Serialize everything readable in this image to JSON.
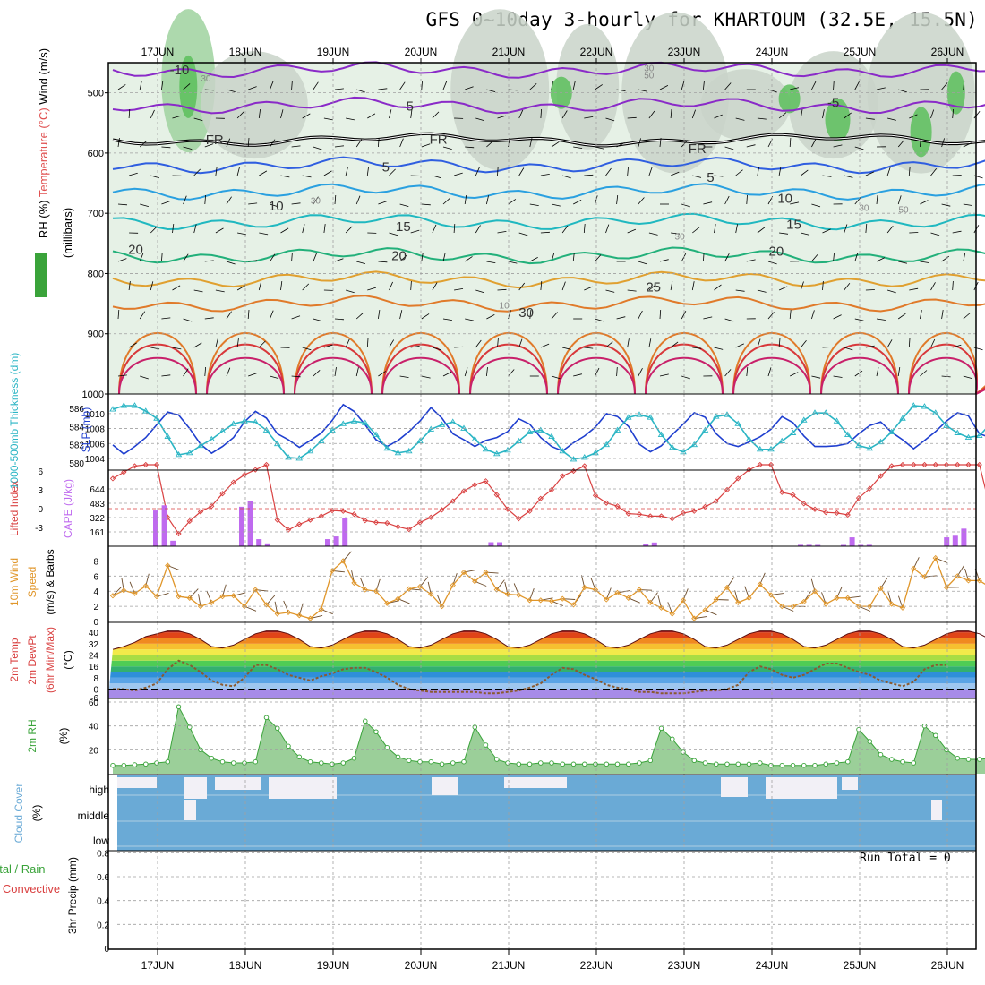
{
  "title": "GFS 0~10day 3-hourly for KHARTOUM (32.5E, 15.5N)",
  "run_total": "Run Total = 0",
  "date_labels": [
    "17JUN",
    "18JUN",
    "19JUN",
    "20JUN",
    "21JUN",
    "22JUN",
    "23JUN",
    "24JUN",
    "25JUN",
    "26JUN"
  ],
  "colors": {
    "frame": "#000000",
    "grid": "#a0a0a0",
    "sounding_bg": "#e6f1e6",
    "cloud": "#6aaad6",
    "cloud_gap": "#f2f0f6",
    "rh": "#3aa33a",
    "slp": "#1f3fcf",
    "thickness": "#2ab5c4",
    "li": "#d94040",
    "cape": "#bf6aef",
    "wind": "#e0962a",
    "freezing": "#000000"
  },
  "chart_data": [
    {
      "type": "contour",
      "panel": "sounding",
      "ylabel_parts": [
        "RH (%)",
        "Temperature (°C)",
        "Wind (m/s)"
      ],
      "ylabel2": "(millibars)",
      "yticks": [
        500,
        600,
        700,
        800,
        900,
        1000
      ],
      "ylim": [
        1000,
        450
      ],
      "temp_contour_labels": [
        {
          "label": "-10",
          "day": 0.25,
          "p": 462
        },
        {
          "label": "-5",
          "day": 2.85,
          "p": 522
        },
        {
          "label": "-5",
          "day": 7.7,
          "p": 516
        },
        {
          "label": "FR",
          "day": 0.65,
          "p": 578
        },
        {
          "label": "FR",
          "day": 3.2,
          "p": 577
        },
        {
          "label": "FR",
          "day": 6.15,
          "p": 593
        },
        {
          "label": "5",
          "day": 2.6,
          "p": 623
        },
        {
          "label": "5",
          "day": 6.3,
          "p": 640
        },
        {
          "label": "10",
          "day": 1.35,
          "p": 688
        },
        {
          "label": "10",
          "day": 7.15,
          "p": 675
        },
        {
          "label": "15",
          "day": 2.8,
          "p": 722
        },
        {
          "label": "15",
          "day": 7.25,
          "p": 718
        },
        {
          "label": "20",
          "day": -0.25,
          "p": 760
        },
        {
          "label": "20",
          "day": 2.75,
          "p": 770
        },
        {
          "label": "20",
          "day": 7.05,
          "p": 763
        },
        {
          "label": "25",
          "day": 5.65,
          "p": 822
        },
        {
          "label": "30",
          "day": 4.2,
          "p": 865
        }
      ],
      "rh_contour_labels": [
        {
          "label": "30",
          "day": 0.55,
          "p": 475
        },
        {
          "label": "30",
          "day": 1.8,
          "p": 678
        },
        {
          "label": "30",
          "day": 5.6,
          "p": 458
        },
        {
          "label": "50",
          "day": 5.6,
          "p": 470
        },
        {
          "label": "30",
          "day": 5.95,
          "p": 738
        },
        {
          "label": "10",
          "day": 3.95,
          "p": 852
        },
        {
          "label": "30",
          "day": 8.05,
          "p": 690
        },
        {
          "label": "50",
          "day": 8.5,
          "p": 693
        }
      ]
    },
    {
      "type": "line",
      "panel": "slp_thickness",
      "ylabel_left": "1000-500mb Thickness (dm)",
      "ylabel_right": "SLP (mb)",
      "left_ticks": [
        580,
        582,
        584,
        586
      ],
      "right_ticks": [
        1004,
        1006,
        1008,
        1010
      ],
      "series": [
        {
          "name": "SLP (mb)",
          "axis": "right",
          "values": [
            1005.8,
            1004.6,
            1005.6,
            1006.8,
            1008.5,
            1010.2,
            1009.8,
            1008.0,
            1005.9,
            1004.7,
            1005.6,
            1006.8,
            1008.9,
            1010.3,
            1009.4,
            1007.3,
            1006.5,
            1005.5,
            1006.4,
            1007.4,
            1009.1,
            1011.2,
            1010.3,
            1008.5,
            1006.5,
            1005.6,
            1006.4,
            1007.6,
            1009.0,
            1010.8,
            1009.4,
            1007.3,
            1006.5,
            1005.6,
            1006.4,
            1006.8,
            1007.6,
            1009.3,
            1008.6,
            1006.8,
            1005.6,
            1005.0,
            1006.1,
            1007.0,
            1008.2,
            1010.0,
            1009.6,
            1008.3,
            1005.9,
            1004.9,
            1005.7,
            1007.2,
            1008.6,
            1010.1,
            1009.5,
            1007.3,
            1006.0,
            1005.6,
            1006.2,
            1006.9,
            1007.9,
            1009.6,
            1008.8,
            1007.0,
            1005.6,
            1005.6,
            1005.7,
            1006.0,
            1007.3,
            1008.4,
            1008.9,
            1007.5,
            1006.5,
            1005.3,
            1006.4,
            1007.6,
            1009.0,
            1010.1,
            1009.7,
            1007.3,
            1006.8,
            1004.3,
            1005.6,
            1006.0,
            1006.3,
            1007.2,
            1008.8
          ]
        },
        {
          "name": "1000-500mb Thickness (dm)",
          "axis": "left",
          "values": [
            585.9,
            586.3,
            586.3,
            585.7,
            584.9,
            582.9,
            580.9,
            581.1,
            581.9,
            582.6,
            583.5,
            584.3,
            584.6,
            584.5,
            583.6,
            582.1,
            580.6,
            580.5,
            581.3,
            582.4,
            583.6,
            584.3,
            584.6,
            584.4,
            583.1,
            581.6,
            581.1,
            581.3,
            582.4,
            583.7,
            584.2,
            584.5,
            583.8,
            582.6,
            581.5,
            581.0,
            581.4,
            582.4,
            583.4,
            583.6,
            582.9,
            581.3,
            580.4,
            580.6,
            581.1,
            582.0,
            583.6,
            585.0,
            585.3,
            585.0,
            583.1,
            581.7,
            581.2,
            582.0,
            583.6,
            585.1,
            585.3,
            584.3,
            582.6,
            581.5,
            581.5,
            582.4,
            583.3,
            584.7,
            585.5,
            585.5,
            584.6,
            583.1,
            581.9,
            581.6,
            582.3,
            583.4,
            584.9,
            586.3,
            586.2,
            585.5,
            584.1,
            583.3,
            582.8,
            583.0,
            584.3,
            586.2,
            586.6,
            586.2,
            584.1,
            582.5,
            582.8
          ]
        }
      ]
    },
    {
      "type": "bar+line",
      "panel": "cape_li",
      "ylabel_left": "Lifted Index",
      "ylabel_right": "CAPE (J/kg)",
      "li_ticks": [
        "-3",
        "0",
        "3",
        "6"
      ],
      "cape_ticks": [
        161,
        322,
        483,
        644
      ],
      "series": [
        {
          "name": "Lifted Index",
          "axis": "left",
          "values": [
            4.8,
            5.8,
            6.8,
            7.0,
            7.0,
            -1.4,
            -4.0,
            -2.0,
            -0.5,
            0.4,
            2.4,
            4.2,
            5.4,
            6.2,
            7.0,
            -1.8,
            -3.4,
            -2.5,
            -1.8,
            -1.2,
            -0.3,
            -0.4,
            -0.9,
            -1.9,
            -2.2,
            -2.3,
            -2.9,
            -3.3,
            -2.2,
            -1.4,
            -0.2,
            1.2,
            2.8,
            3.8,
            4.4,
            2.2,
            -0.1,
            -1.6,
            -0.4,
            1.6,
            3.0,
            5.2,
            6.0,
            6.8,
            2.1,
            0.9,
            0.4,
            -0.8,
            -0.9,
            -1.2,
            -1.2,
            -1.6,
            -0.7,
            -0.4,
            0.3,
            1.2,
            3.0,
            4.8,
            6.2,
            7.0,
            7.0,
            2.6,
            2.2,
            0.8,
            -0.1,
            -0.6,
            -0.7,
            -1.0,
            1.7,
            3.2,
            5.2,
            6.8,
            7.0,
            7.0,
            7.0,
            7.0,
            7.0,
            7.0,
            7.0,
            7.0,
            -0.1,
            -0.5,
            -0.4,
            0.1,
            -0.5,
            -1.1,
            -1.8,
            -3.6
          ]
        },
        {
          "name": "CAPE (J/kg)",
          "axis": "right",
          "values": [
            0,
            0,
            0,
            0,
            0,
            402,
            460,
            62,
            0,
            0,
            0,
            0,
            0,
            0,
            0,
            444,
            512,
            80,
            32,
            0,
            0,
            0,
            0,
            0,
            0,
            80,
            110,
            322,
            0,
            0,
            0,
            0,
            0,
            0,
            0,
            0,
            0,
            0,
            0,
            0,
            0,
            0,
            0,
            0,
            45,
            45,
            0,
            0,
            0,
            0,
            0,
            0,
            0,
            0,
            0,
            0,
            0,
            0,
            0,
            0,
            0,
            0,
            28,
            42,
            0,
            0,
            0,
            0,
            0,
            0,
            0,
            0,
            0,
            0,
            0,
            0,
            0,
            0,
            0,
            0,
            16,
            16,
            15,
            0,
            0,
            15,
            100,
            15,
            16,
            0,
            0,
            0,
            0,
            0,
            0,
            0,
            0,
            100,
            118,
            198
          ]
        }
      ]
    },
    {
      "type": "line",
      "panel": "wind10m",
      "ylabel": "10m Wind Speed & Barbs (m/s)",
      "yticks": [
        0,
        2,
        4,
        6,
        8
      ],
      "ylim": [
        0,
        9
      ],
      "series": [
        {
          "name": "10m Wind Speed",
          "values": [
            3.4,
            4.1,
            3.7,
            4.7,
            3.3,
            7.4,
            3.3,
            3.1,
            2.0,
            2.5,
            3.3,
            3.4,
            2.0,
            4.2,
            2.2,
            1.0,
            1.2,
            0.8,
            0.4,
            1.6,
            6.7,
            8.0,
            5.1,
            4.2,
            4.0,
            2.4,
            3.0,
            4.3,
            4.6,
            3.6,
            2.0,
            4.8,
            6.5,
            5.3,
            6.5,
            4.2,
            3.6,
            3.5,
            2.8,
            2.8,
            2.7,
            3.0,
            2.2,
            4.5,
            4.2,
            2.9,
            3.8,
            3.1,
            4.2,
            2.5,
            1.8,
            1.0,
            2.8,
            0.4,
            1.5,
            2.9,
            4.5,
            2.5,
            3.1,
            4.9,
            3.5,
            2.0,
            2.0,
            2.6,
            4.0,
            2.3,
            3.1,
            3.1,
            2.0,
            2.0,
            4.4,
            2.3,
            1.8,
            7.0,
            5.9,
            8.4,
            4.5,
            6.0,
            5.4,
            5.4,
            4.5,
            3.1,
            3.8,
            4.6,
            5.9,
            8.7
          ]
        }
      ]
    },
    {
      "type": "area",
      "panel": "temp2m",
      "ylabel": "2m Temp 2m DewPt (6hr Min/Max) (°C)",
      "yticks": [
        -6,
        0,
        8,
        16,
        24,
        32,
        40
      ],
      "ylim": [
        -6,
        42
      ],
      "series": [
        {
          "name": "2m Temp (6hr Max)",
          "values": [
            28,
            30,
            33,
            37,
            39,
            41,
            41,
            39,
            35,
            30,
            29,
            31,
            35,
            39,
            41,
            41,
            39,
            35,
            30,
            29,
            31,
            35,
            39,
            41,
            41,
            39,
            35,
            30,
            29,
            31,
            35,
            39,
            41,
            41,
            39,
            35,
            30,
            29,
            31,
            35,
            39,
            41,
            41,
            39,
            35,
            30,
            29,
            31,
            35,
            39,
            41,
            41,
            39,
            35,
            30,
            29,
            31,
            35,
            39,
            41,
            41,
            39,
            35,
            30,
            29,
            31,
            35,
            39,
            41,
            41,
            39,
            35,
            30,
            29,
            31,
            35,
            39,
            41,
            41,
            39,
            35,
            31
          ]
        },
        {
          "name": "2m Temp (6hr Min)",
          "values": [
            28,
            28,
            29,
            31,
            34,
            36,
            37,
            36,
            33,
            30,
            28,
            28,
            30,
            33,
            35,
            36,
            35,
            33,
            30,
            28,
            28,
            30,
            33,
            35,
            36,
            35,
            33,
            30,
            28,
            28,
            30,
            33,
            35,
            36,
            35,
            33,
            30,
            28,
            28,
            30,
            33,
            35,
            36,
            35,
            33,
            30,
            28,
            28,
            30,
            33,
            35,
            36,
            35,
            33,
            30,
            28,
            28,
            30,
            33,
            35,
            36,
            35,
            33,
            30,
            28,
            28,
            30,
            33,
            35,
            36,
            35,
            33,
            30,
            28,
            28,
            30,
            33,
            35,
            36,
            35,
            33,
            30,
            28,
            28,
            30,
            34
          ]
        },
        {
          "name": "2m DewPt",
          "values": [
            0,
            0,
            -1,
            1,
            4,
            14,
            20,
            17,
            12,
            6,
            3,
            2,
            8,
            17,
            17,
            14,
            10,
            8,
            6,
            9,
            11,
            14,
            15,
            15,
            12,
            8,
            3,
            0,
            -1,
            -2,
            -2,
            -2,
            -2,
            -2,
            -3,
            -3,
            -2,
            -1,
            1,
            4,
            10,
            15,
            14,
            10,
            7,
            3,
            1,
            0,
            -2,
            -2,
            -3,
            -3,
            -3,
            -2,
            -1,
            -1,
            0,
            3,
            12,
            16,
            14,
            10,
            8,
            10,
            14,
            18,
            18,
            15,
            12,
            10,
            6,
            4,
            2,
            5,
            14,
            17,
            17
          ]
        }
      ]
    },
    {
      "type": "area",
      "panel": "rh2m",
      "ylabel": "2m RH (%)",
      "yticks": [
        20,
        40,
        60
      ],
      "ylim": [
        0,
        60
      ],
      "series": [
        {
          "name": "2m RH",
          "values": [
            7,
            7,
            7.5,
            8,
            9,
            10,
            56,
            39,
            20,
            13,
            10,
            9,
            9,
            10,
            47,
            38,
            23,
            14,
            10,
            9,
            8,
            9,
            13,
            44,
            35,
            22,
            14,
            11,
            10,
            10,
            8,
            9,
            10,
            39,
            24,
            12,
            9,
            8,
            8,
            9,
            9,
            8,
            8,
            8,
            8,
            8,
            8,
            8,
            9,
            11,
            38,
            29,
            18,
            11,
            9,
            8,
            8,
            8,
            8,
            9,
            7,
            7,
            7,
            7,
            7,
            8,
            9,
            10,
            37,
            27,
            16,
            12,
            10,
            9,
            40,
            32,
            20,
            13,
            12,
            12,
            13,
            31,
            37,
            33
          ]
        }
      ]
    },
    {
      "type": "heatmap",
      "panel": "cloud_cover",
      "ylabel": "Cloud Cover (%)",
      "levels": [
        "high",
        "middle",
        "low"
      ]
    },
    {
      "type": "bar",
      "panel": "precip",
      "ylabel_left_parts": [
        "Total / Rain",
        "Convective"
      ],
      "ylabel": "3hr Precip (mm)",
      "yticks": [
        0,
        0.2,
        0.4,
        0.6,
        0.8
      ],
      "ylim": [
        0,
        0.9
      ],
      "values": []
    }
  ]
}
